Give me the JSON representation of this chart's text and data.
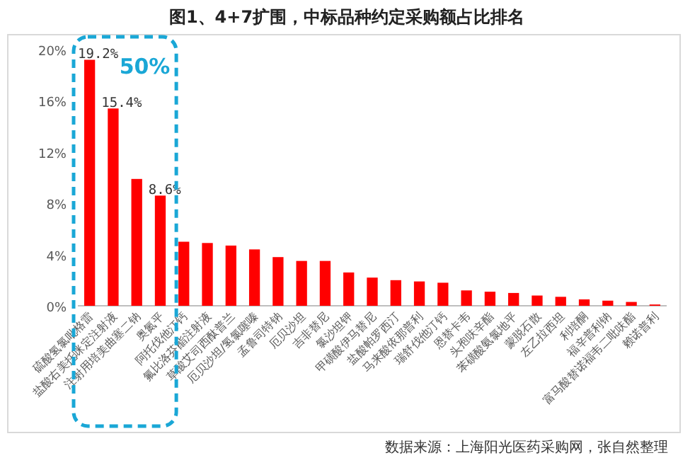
{
  "chart_data": {
    "type": "bar",
    "title": "图1、4+7扩围，中标品种约定采购额占比排名",
    "categories": [
      "硫酸氢氯吡格雷",
      "盐酸右美托咪定注射液",
      "注射用培美曲塞二钠",
      "奥氮平",
      "阿托伐他汀钙",
      "氟比洛芬酯注射液",
      "草酸艾司西酞普兰",
      "厄贝沙坦/氢氯噻嗪",
      "孟鲁司特钠",
      "厄贝沙坦",
      "吉非替尼",
      "氯沙坦钾",
      "甲磺酸伊马替尼",
      "盐酸帕罗西汀",
      "马来酸依那普利",
      "瑞舒伐他汀钙",
      "恩替卡韦",
      "头孢呋辛酯",
      "苯磺酸氨氯地平",
      "蒙脱石散",
      "左乙拉西坦",
      "利培酮",
      "福辛普利钠",
      "富马酸替诺福韦二吡呋酯",
      "赖诺普利"
    ],
    "values": [
      19.2,
      15.4,
      9.9,
      8.6,
      5.0,
      4.9,
      4.7,
      4.4,
      3.8,
      3.5,
      3.5,
      2.6,
      2.2,
      2.0,
      1.9,
      1.8,
      1.2,
      1.1,
      1.0,
      0.8,
      0.7,
      0.5,
      0.4,
      0.3,
      0.1
    ],
    "value_labels": [
      "19.2%",
      "15.4%",
      null,
      "8.6%",
      null,
      null,
      null,
      null,
      null,
      null,
      null,
      null,
      null,
      null,
      null,
      null,
      null,
      null,
      null,
      null,
      null,
      null,
      null,
      null,
      null
    ],
    "color": "#ff0000",
    "ylim": [
      0,
      20
    ],
    "yticks": [
      {
        "value": 0,
        "label": "0%"
      },
      {
        "value": 4,
        "label": "4%"
      },
      {
        "value": 8,
        "label": "8%"
      },
      {
        "value": 12,
        "label": "12%"
      },
      {
        "value": 16,
        "label": "16%"
      },
      {
        "value": 20,
        "label": "20%"
      }
    ],
    "grid": false,
    "annotations": [
      "50%",
      "数据来源：上海阳光医药采购网，张自然整理"
    ]
  }
}
